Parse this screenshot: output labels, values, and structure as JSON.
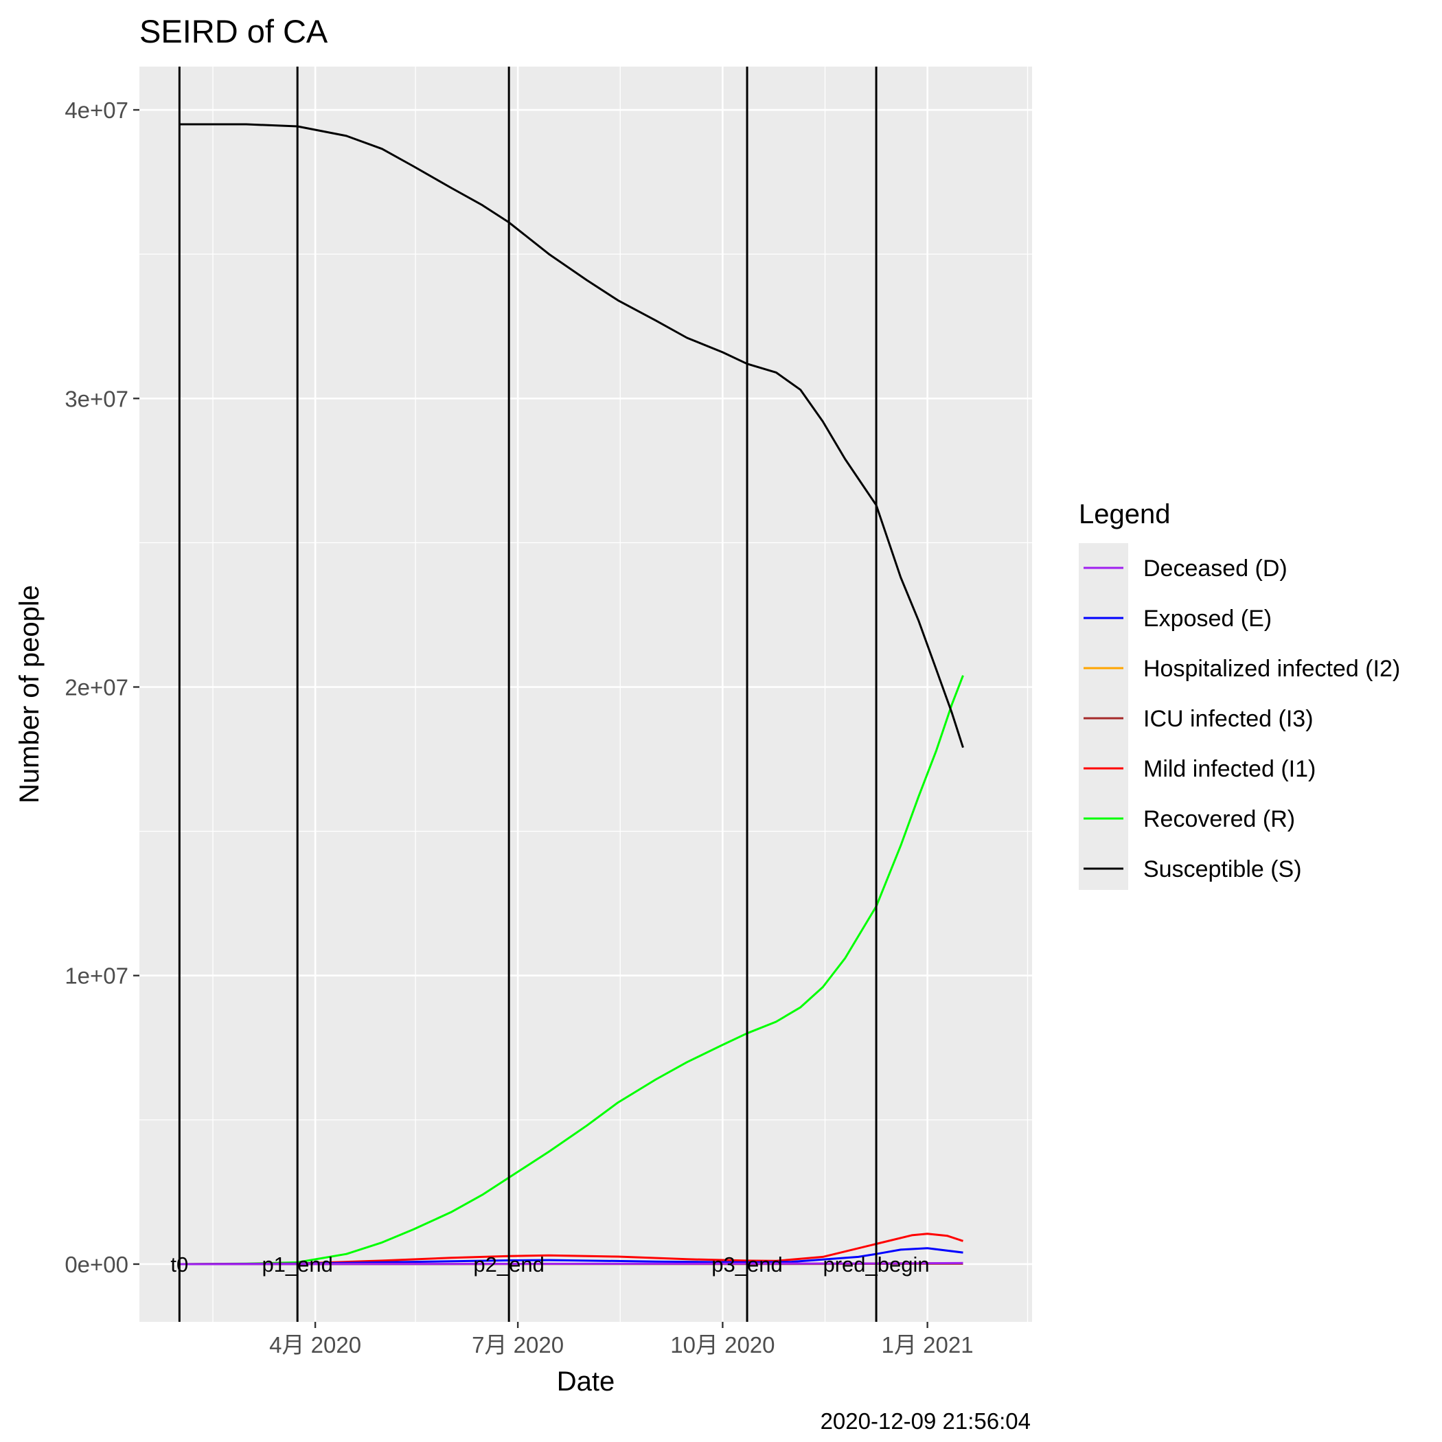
{
  "chart_data": {
    "type": "line",
    "title": "SEIRD of CA",
    "xlabel": "Date",
    "ylabel": "Number of people",
    "caption": "2020-12-09 21:56:04",
    "x_ticks": [
      {
        "date": "2020-04-01",
        "label": "4月 2020"
      },
      {
        "date": "2020-07-01",
        "label": "7月 2020"
      },
      {
        "date": "2020-10-01",
        "label": "10月 2020"
      },
      {
        "date": "2021-01-01",
        "label": "1月 2021"
      }
    ],
    "xlim": [
      "2020-01-13",
      "2021-02-17"
    ],
    "y_ticks": [
      {
        "value": 0,
        "label": "0e+00"
      },
      {
        "value": 10000000,
        "label": "1e+07"
      },
      {
        "value": 20000000,
        "label": "2e+07"
      },
      {
        "value": 30000000,
        "label": "3e+07"
      },
      {
        "value": 40000000,
        "label": "4e+07"
      }
    ],
    "ylim": [
      -2000000,
      41500000
    ],
    "grid": true,
    "legend": {
      "title": "Legend",
      "position": "right"
    },
    "vertical_lines": [
      {
        "date": "2020-01-31",
        "label": "t0"
      },
      {
        "date": "2020-03-24",
        "label": "p1_end"
      },
      {
        "date": "2020-06-27",
        "label": "p2_end"
      },
      {
        "date": "2020-10-12",
        "label": "p3_end"
      },
      {
        "date": "2020-12-09",
        "label": "pred_begin"
      }
    ],
    "series": [
      {
        "name": "Deceased (D)",
        "color": "#a020f0",
        "points": [
          [
            "2020-01-31",
            0
          ],
          [
            "2020-06-01",
            8000
          ],
          [
            "2020-10-01",
            16000
          ],
          [
            "2020-12-09",
            22000
          ],
          [
            "2021-01-17",
            40000
          ]
        ]
      },
      {
        "name": "Exposed (E)",
        "color": "#0000ff",
        "points": [
          [
            "2020-01-31",
            0
          ],
          [
            "2020-03-24",
            15000
          ],
          [
            "2020-05-01",
            60000
          ],
          [
            "2020-06-27",
            130000
          ],
          [
            "2020-07-15",
            140000
          ],
          [
            "2020-09-01",
            90000
          ],
          [
            "2020-10-12",
            60000
          ],
          [
            "2020-11-01",
            80000
          ],
          [
            "2020-12-01",
            250000
          ],
          [
            "2020-12-09",
            350000
          ],
          [
            "2020-12-20",
            500000
          ],
          [
            "2021-01-01",
            550000
          ],
          [
            "2021-01-17",
            400000
          ]
        ]
      },
      {
        "name": "Hospitalized infected (I2)",
        "color": "#ffa500",
        "points": [
          [
            "2020-01-31",
            0
          ],
          [
            "2020-06-27",
            10000
          ],
          [
            "2020-10-12",
            8000
          ],
          [
            "2020-12-09",
            25000
          ],
          [
            "2021-01-01",
            35000
          ],
          [
            "2021-01-17",
            30000
          ]
        ]
      },
      {
        "name": "ICU infected (I3)",
        "color": "#a52a2a",
        "points": [
          [
            "2020-01-31",
            0
          ],
          [
            "2020-06-27",
            4000
          ],
          [
            "2020-10-12",
            3000
          ],
          [
            "2020-12-09",
            10000
          ],
          [
            "2021-01-01",
            14000
          ],
          [
            "2021-01-17",
            12000
          ]
        ]
      },
      {
        "name": "Mild infected (I1)",
        "color": "#ff0000",
        "points": [
          [
            "2020-01-31",
            0
          ],
          [
            "2020-03-24",
            20000
          ],
          [
            "2020-05-01",
            120000
          ],
          [
            "2020-06-01",
            220000
          ],
          [
            "2020-06-27",
            280000
          ],
          [
            "2020-07-15",
            300000
          ],
          [
            "2020-08-15",
            260000
          ],
          [
            "2020-09-15",
            170000
          ],
          [
            "2020-10-12",
            120000
          ],
          [
            "2020-10-25",
            110000
          ],
          [
            "2020-11-15",
            250000
          ],
          [
            "2020-12-09",
            700000
          ],
          [
            "2020-12-25",
            1000000
          ],
          [
            "2021-01-01",
            1050000
          ],
          [
            "2021-01-10",
            980000
          ],
          [
            "2021-01-17",
            800000
          ]
        ]
      },
      {
        "name": "Recovered (R)",
        "color": "#00ff00",
        "points": [
          [
            "2020-01-31",
            0
          ],
          [
            "2020-03-01",
            15000
          ],
          [
            "2020-03-24",
            60000
          ],
          [
            "2020-04-15",
            350000
          ],
          [
            "2020-05-01",
            750000
          ],
          [
            "2020-05-15",
            1200000
          ],
          [
            "2020-06-01",
            1800000
          ],
          [
            "2020-06-15",
            2400000
          ],
          [
            "2020-06-27",
            3000000
          ],
          [
            "2020-07-15",
            3900000
          ],
          [
            "2020-08-01",
            4800000
          ],
          [
            "2020-08-15",
            5600000
          ],
          [
            "2020-09-01",
            6400000
          ],
          [
            "2020-09-15",
            7000000
          ],
          [
            "2020-10-01",
            7600000
          ],
          [
            "2020-10-12",
            8000000
          ],
          [
            "2020-10-25",
            8400000
          ],
          [
            "2020-11-05",
            8900000
          ],
          [
            "2020-11-15",
            9600000
          ],
          [
            "2020-11-25",
            10600000
          ],
          [
            "2020-12-09",
            12400000
          ],
          [
            "2020-12-20",
            14500000
          ],
          [
            "2020-12-28",
            16200000
          ],
          [
            "2021-01-05",
            17800000
          ],
          [
            "2021-01-12",
            19400000
          ],
          [
            "2021-01-17",
            20400000
          ]
        ]
      },
      {
        "name": "Susceptible (S)",
        "color": "#000000",
        "points": [
          [
            "2020-01-31",
            39500000
          ],
          [
            "2020-03-01",
            39500000
          ],
          [
            "2020-03-24",
            39430000
          ],
          [
            "2020-04-15",
            39100000
          ],
          [
            "2020-05-01",
            38650000
          ],
          [
            "2020-05-15",
            38050000
          ],
          [
            "2020-06-01",
            37300000
          ],
          [
            "2020-06-15",
            36700000
          ],
          [
            "2020-06-27",
            36100000
          ],
          [
            "2020-07-15",
            35000000
          ],
          [
            "2020-08-01",
            34100000
          ],
          [
            "2020-08-15",
            33400000
          ],
          [
            "2020-09-01",
            32700000
          ],
          [
            "2020-09-15",
            32100000
          ],
          [
            "2020-10-01",
            31600000
          ],
          [
            "2020-10-12",
            31200000
          ],
          [
            "2020-10-25",
            30900000
          ],
          [
            "2020-11-05",
            30300000
          ],
          [
            "2020-11-15",
            29200000
          ],
          [
            "2020-11-25",
            27900000
          ],
          [
            "2020-12-09",
            26300000
          ],
          [
            "2020-12-20",
            23800000
          ],
          [
            "2020-12-28",
            22300000
          ],
          [
            "2021-01-05",
            20600000
          ],
          [
            "2021-01-12",
            19100000
          ],
          [
            "2021-01-17",
            17900000
          ]
        ]
      }
    ]
  }
}
